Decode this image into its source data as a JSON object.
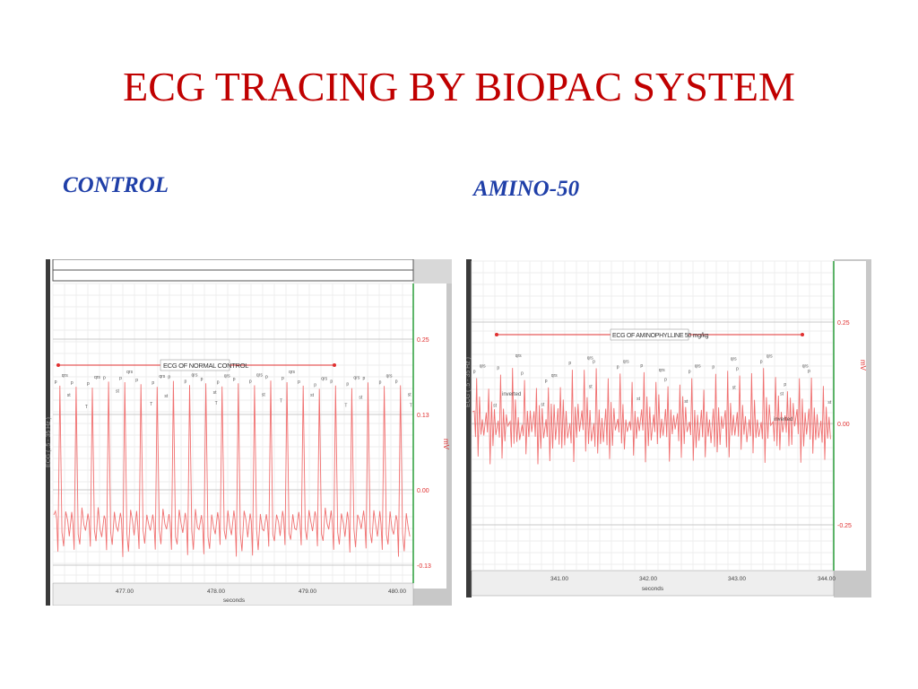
{
  "slide": {
    "title": "ECG TRACING BY BIOPAC SYSTEM",
    "left_label": "CONTROL",
    "right_label": "AMINO-50"
  },
  "colors": {
    "title": "#c00000",
    "panel_label": "#1f3fa8",
    "trace": "#f07070",
    "annotation": "#e03030",
    "window_frame": "#c8c8c8",
    "marker_line": "#2a9d3a"
  },
  "control_panel": {
    "annotation": "ECG OF NORMAL CONTROL",
    "channel_label": "ECG ( .5 - 35 Hz )",
    "units": "mV",
    "y_ticks": [
      "0.25",
      "0.13",
      "0.00",
      "-0.13"
    ],
    "x_ticks": [
      "477.00",
      "478.00",
      "479.00",
      "480.00"
    ],
    "x_title": "seconds",
    "wave_labels": [
      "p",
      "qrs",
      "st",
      "T"
    ]
  },
  "amino_panel": {
    "annotation": "ECG OF AMINOPHYLLINE 50 mg/kg",
    "channel_label": "ECG ( .5 - 35 Hz )",
    "units": "mV",
    "y_ticks": [
      "0.25",
      "0.00",
      "-0.25"
    ],
    "x_ticks": [
      "341.00",
      "342.00",
      "343.00",
      "344.00"
    ],
    "x_title": "seconds",
    "wave_labels": [
      "p",
      "qrs",
      "st",
      "inverted"
    ],
    "notes": [
      "inverted",
      "inverted"
    ]
  }
}
